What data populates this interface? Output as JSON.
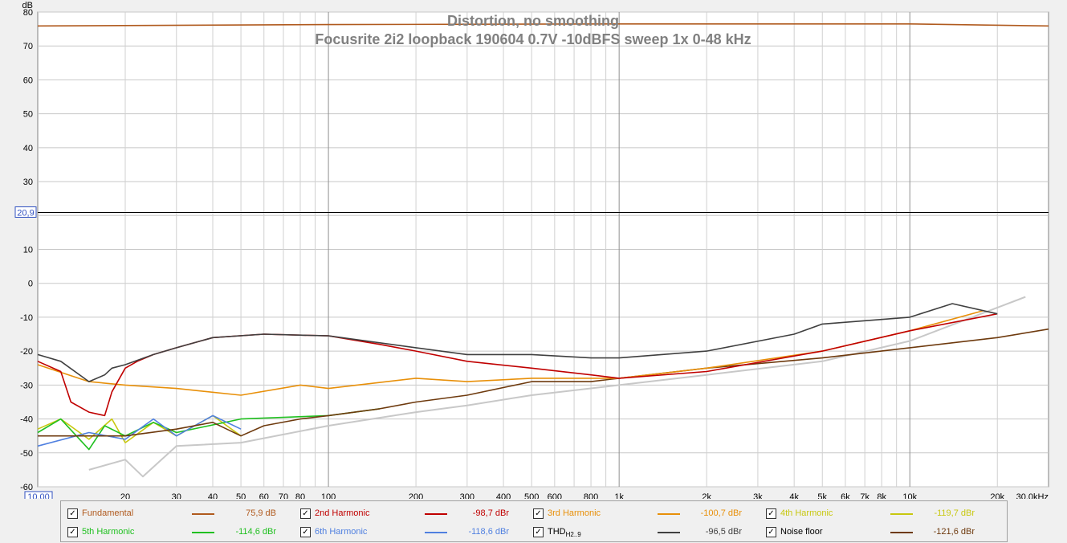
{
  "chart_data": {
    "type": "line",
    "title": "Distortion, no smoothing",
    "subtitle": "Focusrite 2i2 loopback 190604 0.7V -10dBFS sweep 1x 0-48 kHz",
    "ylabel": "dB",
    "ylim": [
      -60,
      80
    ],
    "yticks": [
      "80",
      "70",
      "60",
      "50",
      "40",
      "30",
      "10",
      "0",
      "-10",
      "-20",
      "-30",
      "-40",
      "-50",
      "-60"
    ],
    "cursor_y_value": 20.9,
    "cursor_y_label": "20,9",
    "x_scale": "log",
    "xlim": [
      10,
      30000
    ],
    "x_start_label": "10,00",
    "xticks": [
      {
        "v": 20,
        "l": "20"
      },
      {
        "v": 30,
        "l": "30"
      },
      {
        "v": 40,
        "l": "40"
      },
      {
        "v": 50,
        "l": "50"
      },
      {
        "v": 60,
        "l": "60"
      },
      {
        "v": 70,
        "l": "70"
      },
      {
        "v": 80,
        "l": "80"
      },
      {
        "v": 100,
        "l": "100"
      },
      {
        "v": 200,
        "l": "200"
      },
      {
        "v": 300,
        "l": "300"
      },
      {
        "v": 400,
        "l": "400"
      },
      {
        "v": 500,
        "l": "500"
      },
      {
        "v": 600,
        "l": "600"
      },
      {
        "v": 800,
        "l": "800"
      },
      {
        "v": 1000,
        "l": "1k"
      },
      {
        "v": 2000,
        "l": "2k"
      },
      {
        "v": 3000,
        "l": "3k"
      },
      {
        "v": 4000,
        "l": "4k"
      },
      {
        "v": 5000,
        "l": "5k"
      },
      {
        "v": 6000,
        "l": "6k"
      },
      {
        "v": 7000,
        "l": "7k"
      },
      {
        "v": 8000,
        "l": "8k"
      },
      {
        "v": 10000,
        "l": "10k"
      },
      {
        "v": 20000,
        "l": "20k"
      },
      {
        "v": 30000,
        "l": "30,0kHz"
      }
    ],
    "grid": true,
    "legend_position": "bottom",
    "series": [
      {
        "name": "Fundamental",
        "color": "#b05a1e",
        "value": "75,9 dB",
        "x": [
          10,
          100,
          1000,
          10000,
          30000
        ],
        "y": [
          75.9,
          76.3,
          76.5,
          76.5,
          75.9
        ]
      },
      {
        "name": "2nd Harmonic",
        "color": "#c00000",
        "value": "-98,7 dBr",
        "x": [
          10,
          12,
          13,
          15,
          17,
          18,
          20,
          22,
          25,
          30,
          40,
          60,
          100,
          150,
          200,
          300,
          500,
          800,
          1000,
          2000,
          5000,
          10000,
          20000
        ],
        "y": [
          -23,
          -26,
          -35,
          -38,
          -39,
          -32,
          -25,
          -23,
          -21,
          -19,
          -16,
          -15,
          -15.5,
          -18,
          -20,
          -23,
          -25,
          -27,
          -28,
          -26,
          -20,
          -14,
          -9
        ]
      },
      {
        "name": "3rd Harmonic",
        "color": "#e8900a",
        "value": "-100,7 dBr",
        "x": [
          10,
          15,
          20,
          30,
          50,
          80,
          100,
          200,
          300,
          500,
          800,
          1000,
          2000,
          5000,
          10000,
          18000
        ],
        "y": [
          -24,
          -29,
          -30,
          -31,
          -33,
          -30,
          -31,
          -28,
          -29,
          -28,
          -28,
          -28,
          -25,
          -20,
          -14,
          -8
        ]
      },
      {
        "name": "4th Harmonic",
        "color": "#c8c810",
        "value": "-119,7 dBr",
        "x": [
          10,
          12,
          15,
          18,
          20,
          25,
          30,
          40,
          50
        ],
        "y": [
          -43,
          -40,
          -46,
          -40,
          -47,
          -41,
          -45,
          -39,
          -45
        ]
      },
      {
        "name": "5th Harmonic",
        "color": "#20c020",
        "value": "-114,6 dBr",
        "x": [
          10,
          12,
          15,
          17,
          20,
          25,
          30,
          50,
          100,
          150
        ],
        "y": [
          -44,
          -40,
          -49,
          -42,
          -45,
          -41,
          -44,
          -40,
          -39,
          -37
        ]
      },
      {
        "name": "6th Harmonic",
        "color": "#5080e0",
        "value": "-118,6 dBr",
        "x": [
          10,
          15,
          20,
          25,
          30,
          40,
          50
        ],
        "y": [
          -48,
          -44,
          -46,
          -40,
          -45,
          -39,
          -43
        ]
      },
      {
        "name": "THD",
        "sub": "H2..9",
        "color": "#404040",
        "value": "-96,5 dBr",
        "x": [
          10,
          12,
          15,
          17,
          18,
          20,
          25,
          30,
          40,
          60,
          100,
          200,
          300,
          500,
          800,
          1000,
          2000,
          4000,
          5000,
          10000,
          14000,
          20000
        ],
        "y": [
          -21,
          -23,
          -29,
          -27,
          -25,
          -24,
          -21,
          -19,
          -16,
          -15,
          -15.5,
          -19,
          -21,
          -21,
          -22,
          -22,
          -20,
          -15,
          -12,
          -10,
          -6,
          -9
        ]
      },
      {
        "name": "Noise floor",
        "color": "#6e3a0e",
        "value": "-121,6 dBr",
        "x": [
          10,
          20,
          30,
          40,
          50,
          60,
          80,
          100,
          150,
          200,
          300,
          500,
          800,
          1000,
          2000,
          5000,
          10000,
          20000,
          30000
        ],
        "y": [
          -45,
          -45,
          -43,
          -41,
          -45,
          -42,
          -40,
          -39,
          -37,
          -35,
          -33,
          -29,
          -29,
          -28,
          -25,
          -22,
          -19,
          -16,
          -13.5
        ]
      },
      {
        "name": "",
        "color": "#c8c8c8",
        "x": [
          15,
          20,
          23,
          30,
          50,
          100,
          200,
          300,
          500,
          1000,
          2000,
          5000,
          10000,
          25000
        ],
        "y": [
          -55,
          -52,
          -57,
          -48,
          -47,
          -42,
          -38,
          -36,
          -33,
          -30,
          -27,
          -23,
          -17,
          -4
        ]
      }
    ]
  }
}
